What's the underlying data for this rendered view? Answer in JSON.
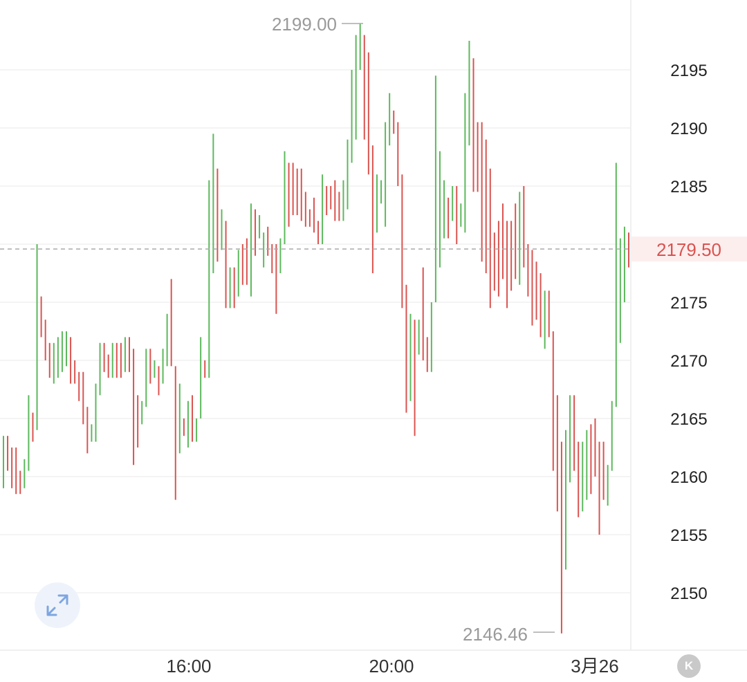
{
  "chart_data": {
    "type": "ohlc",
    "ylim": [
      2144,
      2201
    ],
    "y_ticks": [
      2150,
      2155,
      2160,
      2165,
      2170,
      2175,
      2180,
      2185,
      2190,
      2195
    ],
    "x_ticks": [
      "16:00",
      "20:00",
      "3月26"
    ],
    "current_price": "2179.50",
    "high_label": "2199.00",
    "low_label": "2146.46",
    "grid": true,
    "colors": {
      "up": "#5cb85c",
      "down": "#d9534f",
      "current_line": "#aaaaaa",
      "current_bg": "#fdeeee",
      "current_text": "#d9534f"
    },
    "bars": [
      [
        2161.0,
        2159.0,
        2161.0,
        2163.5
      ],
      [
        2163.5,
        2160.5,
        2161.0,
        2163.5
      ],
      [
        2162.0,
        2159.0,
        2159.5,
        2162.5
      ],
      [
        2161.5,
        2158.5,
        2160.0,
        2162.5
      ],
      [
        2160.5,
        2158.5,
        2159.0,
        2160.5
      ],
      [
        2160.5,
        2159.0,
        2161.5,
        2161.5
      ],
      [
        2163.0,
        2160.5,
        2163.5,
        2167.0
      ],
      [
        2165.0,
        2163.0,
        2164.0,
        2165.5
      ],
      [
        2164.0,
        2164.0,
        2179.5,
        2180.0
      ],
      [
        2175.5,
        2172.0,
        2172.0,
        2175.5
      ],
      [
        2173.5,
        2170.0,
        2170.5,
        2173.5
      ],
      [
        2171.5,
        2168.5,
        2169.0,
        2171.5
      ],
      [
        2169.5,
        2168.0,
        2171.0,
        2171.5
      ],
      [
        2170.0,
        2168.5,
        2172.0,
        2172.0
      ],
      [
        2171.0,
        2169.0,
        2172.0,
        2172.5
      ],
      [
        2171.0,
        2169.5,
        2172.0,
        2172.5
      ],
      [
        2172.0,
        2168.0,
        2168.5,
        2172.0
      ],
      [
        2169.5,
        2168.0,
        2169.0,
        2170.0
      ],
      [
        2169.0,
        2166.5,
        2167.0,
        2169.0
      ],
      [
        2169.0,
        2164.5,
        2165.5,
        2169.0
      ],
      [
        2166.0,
        2162.0,
        2162.5,
        2166.0
      ],
      [
        2164.0,
        2163.0,
        2164.5,
        2164.5
      ],
      [
        2164.0,
        2163.0,
        2167.0,
        2168.0
      ],
      [
        2168.0,
        2167.0,
        2170.5,
        2171.5
      ],
      [
        2171.5,
        2169.0,
        2170.0,
        2171.5
      ],
      [
        2170.5,
        2168.5,
        2170.0,
        2170.5
      ],
      [
        2171.0,
        2168.5,
        2171.0,
        2171.5
      ],
      [
        2171.0,
        2168.5,
        2170.5,
        2171.5
      ],
      [
        2171.5,
        2168.5,
        2169.0,
        2171.5
      ],
      [
        2170.0,
        2169.0,
        2171.5,
        2172.0
      ],
      [
        2172.0,
        2169.0,
        2169.5,
        2172.0
      ],
      [
        2171.0,
        2161.0,
        2162.5,
        2171.0
      ],
      [
        2166.5,
        2162.5,
        2164.0,
        2167.0
      ],
      [
        2164.5,
        2164.5,
        2166.5,
        2166.5
      ],
      [
        2167.0,
        2166.0,
        2169.0,
        2171.0
      ],
      [
        2171.0,
        2168.0,
        2169.0,
        2171.0
      ],
      [
        2168.5,
        2168.5,
        2169.5,
        2170.0
      ],
      [
        2169.5,
        2167.0,
        2168.0,
        2169.5
      ],
      [
        2168.0,
        2168.0,
        2170.0,
        2171.0
      ],
      [
        2170.0,
        2169.5,
        2172.0,
        2174.0
      ],
      [
        2172.0,
        2169.5,
        2169.5,
        2177.0
      ],
      [
        2169.5,
        2158.0,
        2159.0,
        2169.5
      ],
      [
        2162.0,
        2162.0,
        2165.0,
        2168.0
      ],
      [
        2165.0,
        2163.5,
        2164.0,
        2165.0
      ],
      [
        2163.0,
        2162.5,
        2166.0,
        2166.5
      ],
      [
        2166.5,
        2163.0,
        2163.5,
        2167.0
      ],
      [
        2164.5,
        2163.0,
        2165.0,
        2165.0
      ],
      [
        2165.0,
        2165.0,
        2172.0,
        2172.0
      ],
      [
        2170.0,
        2168.5,
        2169.0,
        2170.0
      ],
      [
        2172.0,
        2168.5,
        2185.5,
        2185.5
      ],
      [
        2183.0,
        2177.5,
        2188.5,
        2189.5
      ],
      [
        2186.5,
        2178.5,
        2179.0,
        2186.5
      ],
      [
        2183.0,
        2179.5,
        2183.0,
        2183.0
      ],
      [
        2182.0,
        2174.5,
        2175.5,
        2182.0
      ],
      [
        2176.0,
        2174.5,
        2178.0,
        2178.0
      ],
      [
        2176.5,
        2174.5,
        2176.0,
        2178.0
      ],
      [
        2177.0,
        2175.5,
        2178.5,
        2179.5
      ],
      [
        2179.0,
        2176.5,
        2178.0,
        2180.0
      ],
      [
        2180.5,
        2176.5,
        2177.5,
        2180.5
      ],
      [
        2177.0,
        2175.5,
        2183.0,
        2183.5
      ],
      [
        2183.0,
        2179.0,
        2179.5,
        2183.0
      ],
      [
        2180.5,
        2180.5,
        2182.0,
        2182.5
      ],
      [
        2180.0,
        2178.0,
        2181.0,
        2181.0
      ],
      [
        2180.5,
        2179.0,
        2179.5,
        2181.5
      ],
      [
        2180.0,
        2177.5,
        2177.5,
        2180.0
      ],
      [
        2180.0,
        2174.0,
        2174.5,
        2180.0
      ],
      [
        2178.0,
        2177.5,
        2179.5,
        2180.5
      ],
      [
        2180.0,
        2180.0,
        2187.0,
        2188.0
      ],
      [
        2187.0,
        2181.5,
        2183.0,
        2187.0
      ],
      [
        2186.0,
        2182.5,
        2184.0,
        2187.0
      ],
      [
        2185.5,
        2182.5,
        2183.5,
        2186.5
      ],
      [
        2185.0,
        2182.0,
        2182.5,
        2186.5
      ],
      [
        2184.5,
        2181.5,
        2182.0,
        2184.5
      ],
      [
        2183.0,
        2181.5,
        2181.0,
        2183.0
      ],
      [
        2183.5,
        2181.0,
        2182.5,
        2184.0
      ],
      [
        2182.0,
        2180.0,
        2181.0,
        2182.0
      ],
      [
        2181.0,
        2180.0,
        2185.0,
        2186.0
      ],
      [
        2185.0,
        2182.5,
        2183.5,
        2185.0
      ],
      [
        2184.0,
        2183.0,
        2183.5,
        2185.0
      ],
      [
        2185.5,
        2182.0,
        2182.5,
        2185.5
      ],
      [
        2183.5,
        2182.0,
        2183.0,
        2184.5
      ],
      [
        2183.5,
        2182.0,
        2184.5,
        2185.5
      ],
      [
        2185.0,
        2183.0,
        2187.0,
        2189.0
      ],
      [
        2187.5,
        2187.0,
        2190.0,
        2195.0
      ],
      [
        2191.0,
        2189.0,
        2193.5,
        2198.0
      ],
      [
        2196.0,
        2195.0,
        2199.0,
        2199.0
      ],
      [
        2198.0,
        2189.0,
        2196.5,
        2198.0
      ],
      [
        2196.5,
        2186.0,
        2187.5,
        2196.5
      ],
      [
        2188.5,
        2177.5,
        2178.5,
        2188.5
      ],
      [
        2183.5,
        2181.0,
        2185.5,
        2186.0
      ],
      [
        2184.0,
        2183.5,
        2184.5,
        2185.5
      ],
      [
        2185.0,
        2181.5,
        2189.5,
        2190.5
      ],
      [
        2191.0,
        2188.5,
        2192.5,
        2193.0
      ],
      [
        2192.0,
        2189.5,
        2190.5,
        2191.5
      ],
      [
        2190.5,
        2185.0,
        2186.5,
        2190.5
      ],
      [
        2186.0,
        2174.5,
        2174.5,
        2186.0
      ],
      [
        2175.0,
        2165.5,
        2167.5,
        2176.5
      ],
      [
        2168.0,
        2166.5,
        2173.0,
        2174.0
      ],
      [
        2173.0,
        2163.5,
        2171.5,
        2173.5
      ],
      [
        2173.0,
        2170.5,
        2173.5,
        2173.5
      ],
      [
        2175.0,
        2170.0,
        2171.0,
        2178.0
      ],
      [
        2172.0,
        2169.0,
        2169.0,
        2172.0
      ],
      [
        2170.0,
        2169.0,
        2175.0,
        2175.0
      ],
      [
        2175.5,
        2175.0,
        2184.5,
        2194.5
      ],
      [
        2187.0,
        2178.0,
        2187.5,
        2188.0
      ],
      [
        2184.0,
        2180.5,
        2184.5,
        2185.5
      ],
      [
        2184.0,
        2180.5,
        2183.5,
        2184.0
      ],
      [
        2183.5,
        2182.0,
        2184.0,
        2185.0
      ],
      [
        2185.0,
        2180.0,
        2181.0,
        2185.0
      ],
      [
        2182.5,
        2181.5,
        2183.5,
        2183.5
      ],
      [
        2183.0,
        2181.0,
        2186.0,
        2193.0
      ],
      [
        2193.0,
        2188.5,
        2197.5,
        2197.5
      ],
      [
        2196.0,
        2184.5,
        2185.5,
        2196.0
      ],
      [
        2190.5,
        2184.5,
        2185.5,
        2190.5
      ],
      [
        2190.5,
        2178.5,
        2180.0,
        2190.5
      ],
      [
        2189.0,
        2177.5,
        2178.0,
        2189.0
      ],
      [
        2186.5,
        2174.5,
        2176.0,
        2186.5
      ],
      [
        2181.0,
        2176.0,
        2177.5,
        2181.0
      ],
      [
        2179.0,
        2175.5,
        2177.5,
        2182.0
      ],
      [
        2183.0,
        2177.0,
        2181.0,
        2183.5
      ],
      [
        2182.0,
        2174.5,
        2175.0,
        2182.0
      ],
      [
        2182.0,
        2176.0,
        2177.0,
        2182.0
      ],
      [
        2180.0,
        2177.0,
        2177.5,
        2183.5
      ],
      [
        2180.0,
        2176.5,
        2184.0,
        2184.5
      ],
      [
        2184.5,
        2178.0,
        2178.5,
        2185.0
      ],
      [
        2179.5,
        2175.5,
        2176.0,
        2180.0
      ],
      [
        2175.5,
        2173.0,
        2175.0,
        2179.5
      ],
      [
        2178.0,
        2173.5,
        2174.0,
        2178.5
      ],
      [
        2174.0,
        2172.0,
        2172.0,
        2177.5
      ],
      [
        2172.0,
        2171.0,
        2176.0,
        2176.0
      ],
      [
        2176.0,
        2172.0,
        2172.5,
        2176.0
      ],
      [
        2172.5,
        2160.5,
        2161.0,
        2172.5
      ],
      [
        2167.0,
        2157.0,
        2157.5,
        2167.0
      ],
      [
        2163.0,
        2146.5,
        2147.5,
        2163.0
      ],
      [
        2156.5,
        2152.0,
        2164.0,
        2164.0
      ],
      [
        2161.5,
        2159.5,
        2161.5,
        2167.0
      ],
      [
        2167.0,
        2160.5,
        2162.0,
        2167.0
      ],
      [
        2163.0,
        2156.5,
        2157.5,
        2163.0
      ],
      [
        2162.0,
        2157.0,
        2162.5,
        2163.0
      ],
      [
        2161.5,
        2158.0,
        2162.5,
        2164.0
      ],
      [
        2164.5,
        2158.5,
        2160.5,
        2164.5
      ],
      [
        2164.5,
        2160.0,
        2161.0,
        2165.0
      ],
      [
        2163.0,
        2155.0,
        2162.0,
        2163.0
      ],
      [
        2162.0,
        2158.0,
        2158.0,
        2163.0
      ],
      [
        2159.0,
        2157.5,
        2161.0,
        2161.0
      ],
      [
        2160.5,
        2160.5,
        2166.5,
        2166.5
      ],
      [
        2166.0,
        2166.0,
        2182.0,
        2187.0
      ],
      [
        2180.0,
        2171.5,
        2180.0,
        2180.5
      ],
      [
        2179.5,
        2175.0,
        2180.5,
        2181.5
      ],
      [
        2181.0,
        2178.0,
        2179.5,
        2181.0
      ]
    ]
  }
}
